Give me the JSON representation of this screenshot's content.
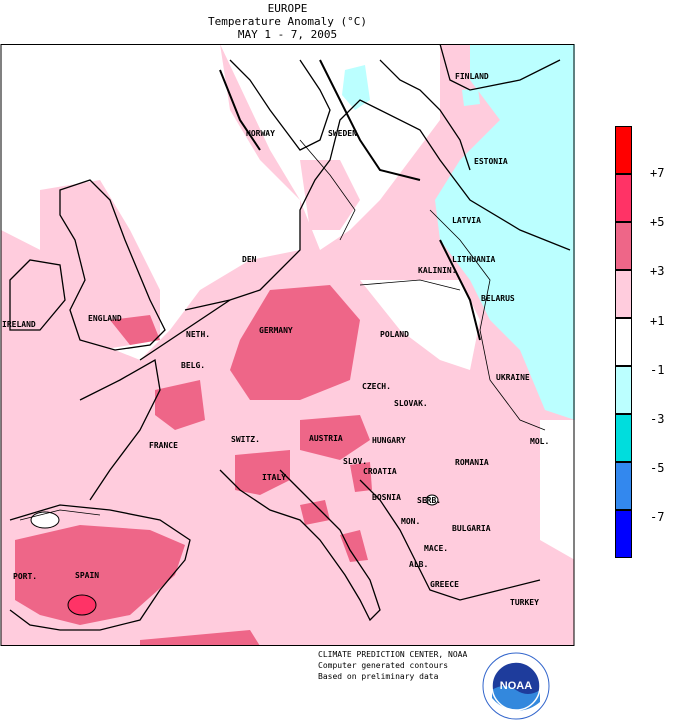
{
  "title": {
    "line1": "EUROPE",
    "line2": "Temperature Anomaly (°C)",
    "line3": "MAY 1 - 7, 2005"
  },
  "legend": {
    "labels": [
      "+7",
      "+5",
      "+3",
      "+1",
      "-1",
      "-3",
      "-5",
      "-7"
    ],
    "colors": [
      "#ff0000",
      "#ff3366",
      "#ee6688",
      "#ffccdd",
      "#ffffff",
      "#bbffff",
      "#00dddd",
      "#3388ee",
      "#0000ff"
    ]
  },
  "map": {
    "colors": {
      "pos_1_3": "#ffccdd",
      "pos_3_5": "#ee6688",
      "pos_5_7": "#ff3366",
      "neg_1_3": "#bbffff",
      "neutral": "#ffffff"
    },
    "countries": [
      "FINLAND",
      "NORWAY",
      "SWEDEN",
      "ESTONIA",
      "LATVIA",
      "DEN",
      "LITHUANIA",
      "KALININ.",
      "BELARUS",
      "IRELAND",
      "ENGLAND",
      "NETH.",
      "GERMANY",
      "POLAND",
      "BELG.",
      "CZECH.",
      "UKRAINE",
      "SLOVAK.",
      "MOL.",
      "FRANCE",
      "SWITZ.",
      "AUSTRIA",
      "HUNGARY",
      "ROMANIA",
      "SLOV.",
      "CROATIA",
      "ITALY",
      "BOSNIA",
      "SERB.",
      "BULGARIA",
      "MON.",
      "MACE.",
      "PORT.",
      "SPAIN",
      "ALB.",
      "GREECE",
      "TURKEY"
    ]
  },
  "credits": {
    "line1": "CLIMATE PREDICTION CENTER, NOAA",
    "line2": "Computer generated contours",
    "line3": "Based on preliminary data"
  },
  "logo": {
    "text": "NOAA",
    "icon": "noaa-logo"
  }
}
